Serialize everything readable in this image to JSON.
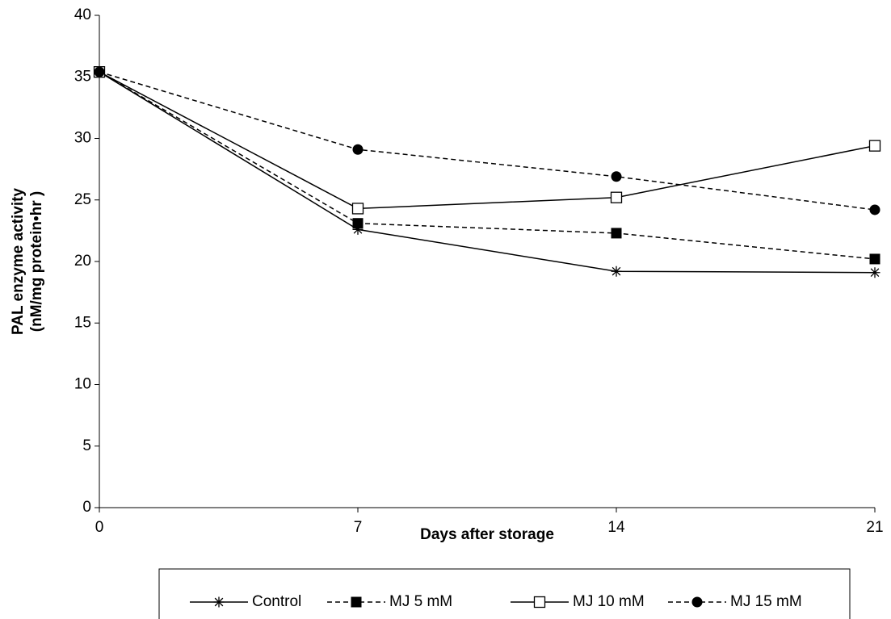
{
  "chart_data": {
    "type": "line",
    "x_label": "Days after storage",
    "y_label": [
      "PAL enzyme activity",
      "(nM/mg protein•hr )"
    ],
    "x": [
      0,
      7,
      14,
      21
    ],
    "xlim": [
      0,
      21
    ],
    "xticks": [
      0,
      7,
      14,
      21
    ],
    "ylim": [
      0,
      40
    ],
    "yticks": [
      0,
      5,
      10,
      15,
      20,
      25,
      30,
      35,
      40
    ],
    "legend": "bottom",
    "series": [
      {
        "name": "Control",
        "color": "#000000",
        "marker": "star",
        "dashed": false,
        "values": [
          35.4,
          22.6,
          19.2,
          19.1
        ]
      },
      {
        "name": "MJ 5 mM",
        "color": "#000000",
        "marker": "square",
        "dashed": true,
        "values": [
          35.4,
          23.1,
          22.3,
          20.2
        ]
      },
      {
        "name": "MJ 10 mM",
        "color": "#000000",
        "marker": "open-square",
        "dashed": false,
        "values": [
          35.4,
          24.3,
          25.2,
          29.4
        ]
      },
      {
        "name": "MJ 15 mM",
        "color": "#000000",
        "marker": "circle",
        "dashed": true,
        "values": [
          35.4,
          29.1,
          26.9,
          24.2
        ]
      }
    ]
  }
}
